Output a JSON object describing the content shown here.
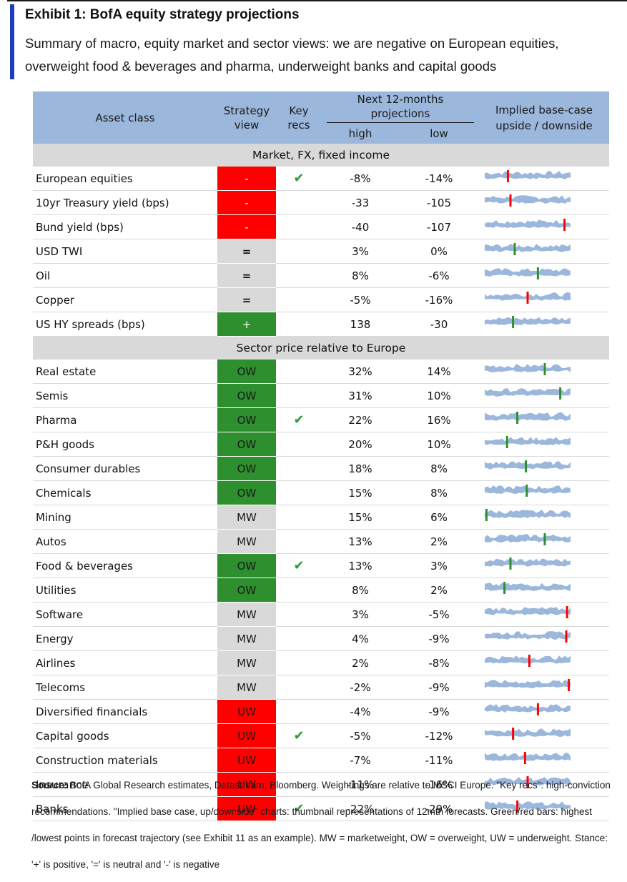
{
  "header": {
    "title": "Exhibit 1: BofA equity strategy projections",
    "subtitle": "Summary of macro, equity market and sector views: we are negative on European equities, overweight food & beverages and pharma, underweight banks and capital goods"
  },
  "table": {
    "col_asset": "Asset class",
    "col_strategy": "Strategy view",
    "col_key": "Key recs",
    "col_next": "Next 12-months projections",
    "col_high": "high",
    "col_low": "low",
    "col_implied": "Implied base-case upside / downside",
    "sections": [
      {
        "title": "Market, FX, fixed income",
        "rows": [
          {
            "name": "European equities",
            "view": "-",
            "key": true,
            "high": "-8%",
            "low": "-14%",
            "marker": "red",
            "mpos": 0.27
          },
          {
            "name": "10yr Treasury yield (bps)",
            "view": "-",
            "key": false,
            "high": "-33",
            "low": "-105",
            "marker": "red",
            "mpos": 0.3
          },
          {
            "name": "Bund yield (bps)",
            "view": "-",
            "key": false,
            "high": "-40",
            "low": "-107",
            "marker": "red",
            "mpos": 0.93
          },
          {
            "name": "USD TWI",
            "view": "=",
            "key": false,
            "high": "3%",
            "low": "0%",
            "marker": "green",
            "mpos": 0.35
          },
          {
            "name": "Oil",
            "view": "=",
            "key": false,
            "high": "8%",
            "low": "-6%",
            "marker": "green",
            "mpos": 0.62
          },
          {
            "name": "Copper",
            "view": "=",
            "key": false,
            "high": "-5%",
            "low": "-16%",
            "marker": "red",
            "mpos": 0.5
          },
          {
            "name": "US HY spreads (bps)",
            "view": "+",
            "key": false,
            "high": "138",
            "low": "-30",
            "marker": "green",
            "mpos": 0.33
          }
        ]
      },
      {
        "title": "Sector price relative to Europe",
        "rows": [
          {
            "name": "Real estate",
            "view": "OW",
            "key": false,
            "high": "32%",
            "low": "14%",
            "marker": "green",
            "mpos": 0.7
          },
          {
            "name": "Semis",
            "view": "OW",
            "key": false,
            "high": "31%",
            "low": "10%",
            "marker": "green",
            "mpos": 0.88
          },
          {
            "name": "Pharma",
            "view": "OW",
            "key": true,
            "high": "22%",
            "low": "16%",
            "marker": "green",
            "mpos": 0.38
          },
          {
            "name": "P&H goods",
            "view": "OW",
            "key": false,
            "high": "20%",
            "low": "10%",
            "marker": "green",
            "mpos": 0.26
          },
          {
            "name": "Consumer durables",
            "view": "OW",
            "key": false,
            "high": "18%",
            "low": "8%",
            "marker": "green",
            "mpos": 0.48
          },
          {
            "name": "Chemicals",
            "view": "OW",
            "key": false,
            "high": "15%",
            "low": "8%",
            "marker": "green",
            "mpos": 0.49
          },
          {
            "name": "Mining",
            "view": "MW",
            "key": false,
            "high": "15%",
            "low": "6%",
            "marker": "green",
            "mpos": 0.02
          },
          {
            "name": "Autos",
            "view": "MW",
            "key": false,
            "high": "13%",
            "low": "2%",
            "marker": "green",
            "mpos": 0.7
          },
          {
            "name": "Food & beverages",
            "view": "OW",
            "key": true,
            "high": "13%",
            "low": "3%",
            "marker": "green",
            "mpos": 0.3
          },
          {
            "name": "Utilities",
            "view": "OW",
            "key": false,
            "high": "8%",
            "low": "2%",
            "marker": "green",
            "mpos": 0.23
          },
          {
            "name": "Software",
            "view": "MW",
            "key": false,
            "high": "3%",
            "low": "-5%",
            "marker": "red",
            "mpos": 0.96
          },
          {
            "name": "Energy",
            "view": "MW",
            "key": false,
            "high": "4%",
            "low": "-9%",
            "marker": "red",
            "mpos": 0.95
          },
          {
            "name": "Airlines",
            "view": "MW",
            "key": false,
            "high": "2%",
            "low": "-8%",
            "marker": "red",
            "mpos": 0.52
          },
          {
            "name": "Telecoms",
            "view": "MW",
            "key": false,
            "high": "-2%",
            "low": "-9%",
            "marker": "red",
            "mpos": 0.98
          },
          {
            "name": "Diversified financials",
            "view": "UW",
            "key": false,
            "high": "-4%",
            "low": "-9%",
            "marker": "red",
            "mpos": 0.62
          },
          {
            "name": "Capital goods",
            "view": "UW",
            "key": true,
            "high": "-5%",
            "low": "-12%",
            "marker": "red",
            "mpos": 0.33
          },
          {
            "name": "Construction materials",
            "view": "UW",
            "key": false,
            "high": "-7%",
            "low": "-11%",
            "marker": "red",
            "mpos": 0.47
          },
          {
            "name": "Insurance",
            "view": "UW",
            "key": false,
            "high": "-11%",
            "low": "-16%",
            "marker": "red",
            "mpos": 0.5
          },
          {
            "name": "Banks",
            "view": "UW",
            "key": true,
            "high": "-22%",
            "low": "-29%",
            "marker": "red",
            "mpos": 0.38
          }
        ]
      }
    ]
  },
  "footer": {
    "source_label": "Source:",
    "source_text": " BofA Global Research estimates, Datastream, Bloomberg. Weightings are relative to MSCI Europe. \"Key recs\": high-conviction recommendations. \"Implied base case, up/downside\" charts: thumbnail representations of 12mth forecasts. Green/red bars: highest /lowest points in forecast trajectory (see Exhibit 11 as an example). MW = marketweight, OW = overweight, UW = underweight. Stance: '+' is positive, '=' is neutral and '-' is negative"
  },
  "colors": {
    "accent": "#1f3bbf",
    "header_bg": "#9bb7dc",
    "positive": "#2d8f2d",
    "negative": "#ff0000",
    "neutral": "#d9d9d9",
    "spark": "#9bb7dc"
  },
  "icons": {
    "key_rec": "check-icon"
  }
}
